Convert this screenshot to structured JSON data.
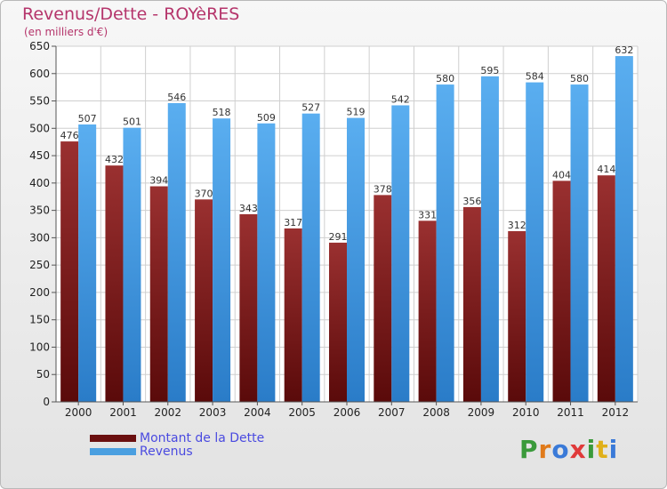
{
  "title": "Revenus/Dette - ROYèRES",
  "subtitle": "(en milliers d'€)",
  "logo": {
    "text": "Proxiti",
    "colors": [
      "#3a9a3a",
      "#e07a1a",
      "#3a7ad8",
      "#e03a3a",
      "#3a9a3a",
      "#e0b01a",
      "#3a7ad8"
    ]
  },
  "colors": {
    "dette": "#7a1a1a",
    "revenus": "#4a9fe0"
  },
  "chart_data": {
    "type": "bar",
    "title": "Revenus/Dette - ROYèRES",
    "categories": [
      "2000",
      "2001",
      "2002",
      "2003",
      "2004",
      "2005",
      "2006",
      "2007",
      "2008",
      "2009",
      "2010",
      "2011",
      "2012"
    ],
    "series": [
      {
        "name": "Montant de la Dette",
        "values": [
          476,
          432,
          394,
          370,
          343,
          317,
          291,
          378,
          331,
          356,
          312,
          404,
          414
        ]
      },
      {
        "name": "Revenus",
        "values": [
          507,
          501,
          546,
          518,
          509,
          527,
          519,
          542,
          580,
          595,
          584,
          580,
          632
        ]
      }
    ],
    "ylim": [
      0,
      650
    ],
    "yticks": [
      0,
      50,
      100,
      150,
      200,
      250,
      300,
      350,
      400,
      450,
      500,
      550,
      600,
      650
    ],
    "grid": true,
    "legend": "bottom-left"
  }
}
